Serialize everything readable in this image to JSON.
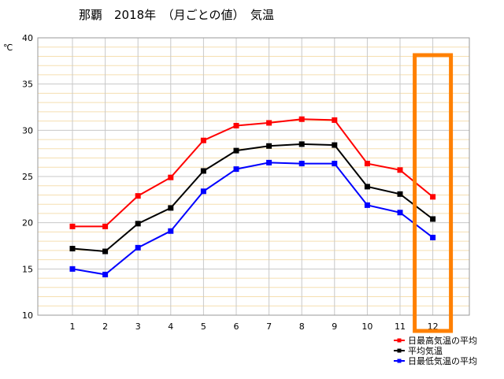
{
  "chart_data": {
    "type": "line",
    "title": "那覇　2018年　（月ごとの値）　気温",
    "ylabel": "℃",
    "xlabel": "",
    "categories": [
      "1",
      "2",
      "3",
      "4",
      "5",
      "6",
      "7",
      "8",
      "9",
      "10",
      "11",
      "12"
    ],
    "ylim": [
      10,
      40
    ],
    "yticks": [
      "10",
      "15",
      "20",
      "25",
      "30",
      "35",
      "40"
    ],
    "grid": true,
    "legend_position": "bottom-right",
    "series": [
      {
        "name": "日最高気温の平均",
        "color": "#ff0000",
        "values": [
          19.6,
          19.6,
          22.9,
          24.9,
          28.9,
          30.5,
          30.8,
          31.2,
          31.1,
          26.4,
          25.7,
          22.8
        ]
      },
      {
        "name": "平均気温",
        "color": "#000000",
        "values": [
          17.2,
          16.9,
          19.9,
          21.6,
          25.6,
          27.8,
          28.3,
          28.5,
          28.4,
          23.9,
          23.1,
          20.4
        ]
      },
      {
        "name": "日最低気温の平均",
        "color": "#0000ff",
        "values": [
          15.0,
          14.4,
          17.3,
          19.1,
          23.4,
          25.8,
          26.5,
          26.4,
          26.4,
          21.9,
          21.1,
          18.4
        ]
      }
    ],
    "highlight": {
      "category": "12",
      "color": "#ff8000"
    },
    "colors": {
      "grid_minor": "#f5dfb0",
      "grid_vertical": "#c8c8c8",
      "frame": "#9a9a9a"
    }
  }
}
